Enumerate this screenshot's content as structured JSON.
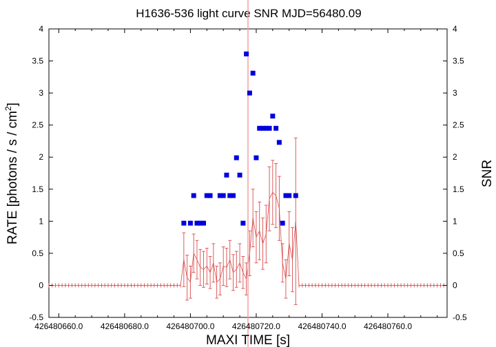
{
  "chart_data": {
    "type": "scatter",
    "title": "H1636-536 light curve  SNR MJD=56480.09",
    "xlabel": "MAXI TIME [s]",
    "ylabel_left": "RATE [photons / s / cm2]",
    "ylabel_left_main": "RATE [photons / s / cm",
    "ylabel_left_sup": "2",
    "ylabel_left_end": "]",
    "ylabel_right": "SNR",
    "xlim": [
      426480657.0,
      426480778.0
    ],
    "ylim": [
      -0.5,
      4
    ],
    "x_ticks": [
      426480660.0,
      426480680.0,
      426480700.0,
      426480720.0,
      426480740.0,
      426480760.0
    ],
    "x_tick_labels": [
      "426480660.0",
      "426480680.0",
      "426480700.0",
      "426480720.0",
      "426480740.0",
      "426480760.0"
    ],
    "y_ticks": [
      -0.5,
      0,
      0.5,
      1,
      1.5,
      2,
      2.5,
      3,
      3.5,
      4
    ],
    "y_tick_labels": [
      "-0.5",
      "0",
      "0.5",
      "1",
      "1.5",
      "2",
      "2.5",
      "3",
      "3.5",
      "4"
    ],
    "grid": false,
    "colors": {
      "rate": "#d94a4a",
      "snr": "#0000dd",
      "marker_line": "#f0a0a0"
    },
    "marker_x": 426480717.5,
    "rate_series": {
      "name": "RATE",
      "x_start": 426480657.0,
      "x_step": 1.0,
      "flat_until": 426480697.0,
      "points": [
        [
          426480698,
          0.4,
          0.42
        ],
        [
          426480699,
          0.12,
          0.35
        ],
        [
          426480700,
          0.05,
          0.25
        ],
        [
          426480701,
          0.5,
          0.3
        ],
        [
          426480702,
          0.4,
          0.3
        ],
        [
          426480703,
          0.28,
          0.28
        ],
        [
          426480704,
          0.25,
          0.28
        ],
        [
          426480705,
          0.3,
          0.28
        ],
        [
          426480706,
          0.2,
          0.25
        ],
        [
          426480707,
          0.35,
          0.3
        ],
        [
          426480708,
          0.05,
          0.25
        ],
        [
          426480709,
          0.1,
          0.25
        ],
        [
          426480710,
          0.3,
          0.3
        ],
        [
          426480711,
          0.28,
          0.3
        ],
        [
          426480712,
          0.4,
          0.3
        ],
        [
          426480713,
          0.2,
          0.28
        ],
        [
          426480714,
          0.25,
          0.28
        ],
        [
          426480715,
          0.35,
          0.3
        ],
        [
          426480716,
          0.2,
          0.25
        ],
        [
          426480717,
          0.1,
          0.25
        ],
        [
          426480718,
          0.5,
          0.35
        ],
        [
          426480719,
          1.05,
          0.45
        ],
        [
          426480720,
          0.75,
          0.4
        ],
        [
          426480721,
          0.85,
          0.45
        ],
        [
          426480722,
          0.65,
          0.4
        ],
        [
          426480723,
          0.8,
          0.45
        ],
        [
          426480724,
          1.35,
          0.5
        ],
        [
          426480725,
          1.45,
          0.5
        ],
        [
          426480726,
          1.4,
          0.5
        ],
        [
          426480727,
          1.2,
          0.5
        ],
        [
          426480728,
          0.35,
          0.3
        ],
        [
          426480729,
          0.1,
          0.3
        ],
        [
          426480730,
          0.65,
          0.5
        ],
        [
          426480731,
          0.4,
          0.5
        ],
        [
          426480732,
          1.0,
          1.3
        ]
      ],
      "flat_from": 426480733.0,
      "x_end": 426480777.0
    },
    "snr_series": {
      "name": "SNR",
      "points": [
        [
          426480698,
          0.97
        ],
        [
          426480700,
          0.97
        ],
        [
          426480701,
          1.4
        ],
        [
          426480702,
          0.97
        ],
        [
          426480703,
          0.97
        ],
        [
          426480704,
          0.97
        ],
        [
          426480705,
          1.4
        ],
        [
          426480706,
          1.4
        ],
        [
          426480709,
          1.4
        ],
        [
          426480710,
          1.4
        ],
        [
          426480711,
          1.72
        ],
        [
          426480712,
          1.4
        ],
        [
          426480713,
          1.4
        ],
        [
          426480714,
          1.99
        ],
        [
          426480715,
          1.72
        ],
        [
          426480716,
          0.97
        ],
        [
          426480717,
          3.61
        ],
        [
          426480718,
          3.0
        ],
        [
          426480719,
          3.31
        ],
        [
          426480720,
          1.99
        ],
        [
          426480721,
          2.45
        ],
        [
          426480722,
          2.45
        ],
        [
          426480723,
          2.45
        ],
        [
          426480724,
          2.45
        ],
        [
          426480725,
          2.64
        ],
        [
          426480726,
          2.45
        ],
        [
          426480727,
          2.23
        ],
        [
          426480728,
          0.97
        ],
        [
          426480729,
          1.4
        ],
        [
          426480730,
          1.4
        ],
        [
          426480732,
          1.4
        ]
      ]
    }
  }
}
